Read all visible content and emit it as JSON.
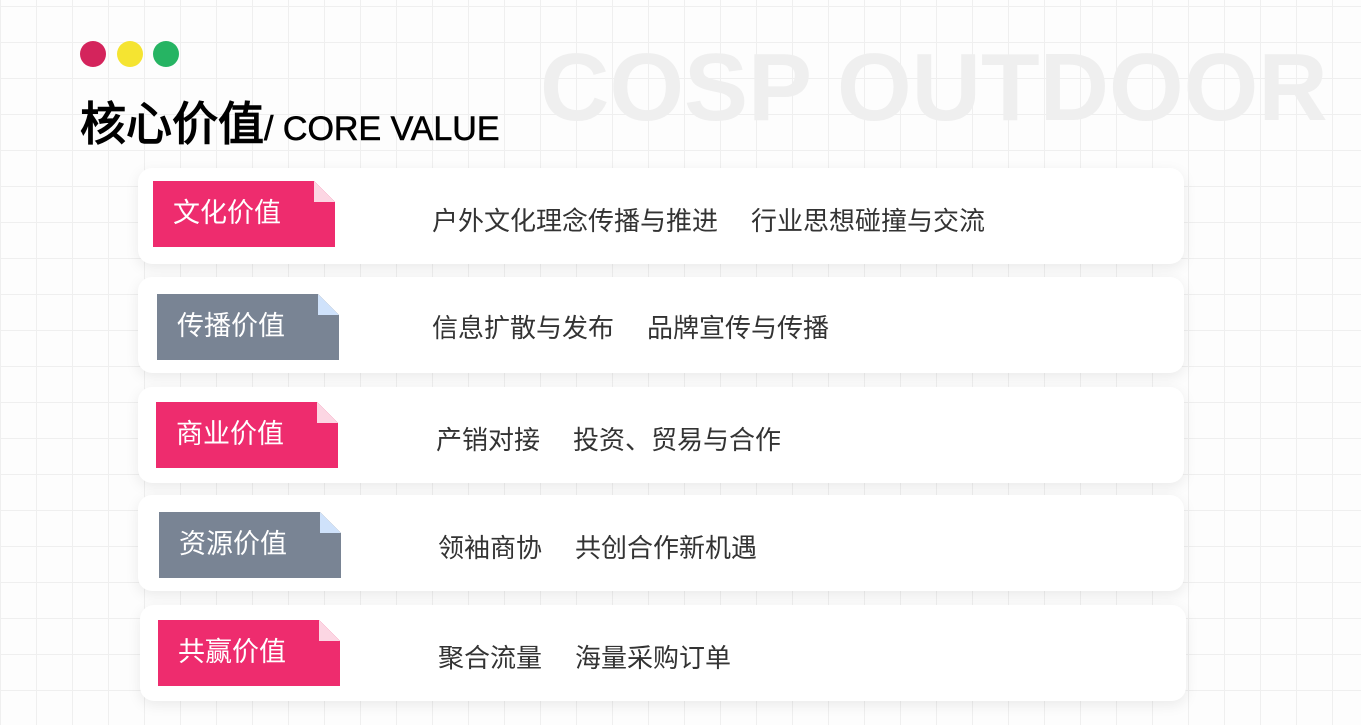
{
  "watermark": "COSP OUTDOOR",
  "title": {
    "cn": "核心价值",
    "en": "/ CORE VALUE"
  },
  "dots": [
    "#d4245c",
    "#f5e431",
    "#26b463"
  ],
  "colors": {
    "pink": "#ee2c6e",
    "gray": "#798494",
    "pink_fold": "#fcd6e3",
    "gray_fold": "#cfe2fb"
  },
  "rows": [
    {
      "tag": "文化价值",
      "style": "pink",
      "desc": "户外文化理念传播与推进    行业思想碰撞与交流"
    },
    {
      "tag": "传播价值",
      "style": "gray",
      "desc": "信息扩散与发布    品牌宣传与传播"
    },
    {
      "tag": "商业价值",
      "style": "pink",
      "desc": "产销对接    投资、贸易与合作"
    },
    {
      "tag": "资源价值",
      "style": "gray",
      "desc": "领袖商协    共创合作新机遇"
    },
    {
      "tag": "共赢价值",
      "style": "pink",
      "desc": "聚合流量    海量采购订单"
    }
  ]
}
